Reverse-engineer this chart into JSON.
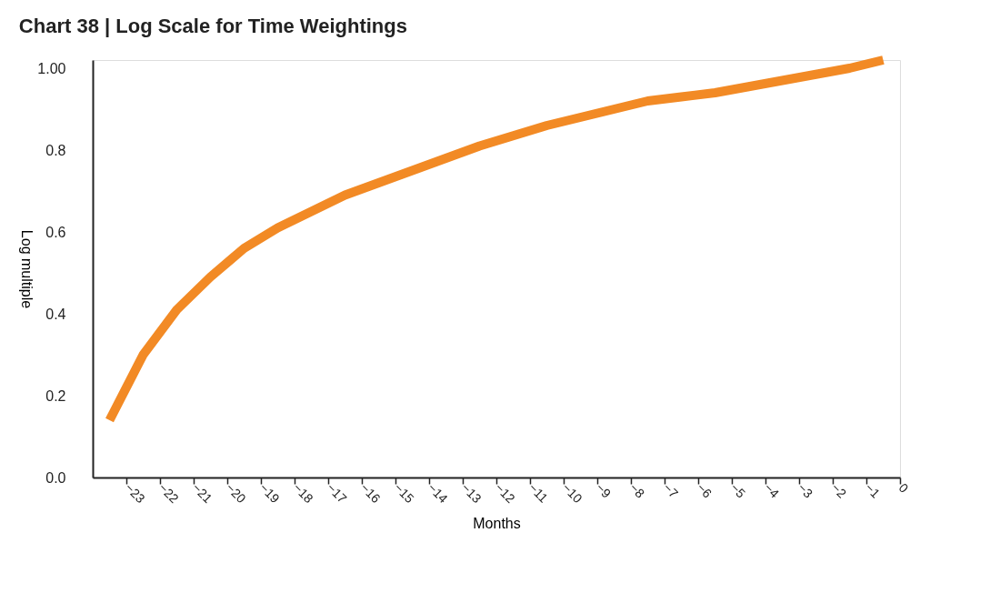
{
  "chart_data": {
    "type": "line",
    "title": "Chart 38 | Log Scale for Time Weightings",
    "xlabel": "Months",
    "ylabel": "Log multiple",
    "x": [
      -23.5,
      -22.5,
      -21.5,
      -20.5,
      -19.5,
      -18.5,
      -17.5,
      -16.5,
      -15.5,
      -14.5,
      -13.5,
      -12.5,
      -11.5,
      -10.5,
      -9.5,
      -8.5,
      -7.5,
      -6.5,
      -5.5,
      -4.5,
      -3.5,
      -2.5,
      -1.5,
      -0.5
    ],
    "series": [
      {
        "color": "#f28a25",
        "values": [
          0.14,
          0.3,
          0.41,
          0.49,
          0.56,
          0.61,
          0.65,
          0.69,
          0.72,
          0.75,
          0.78,
          0.81,
          0.835,
          0.86,
          0.88,
          0.9,
          0.92,
          0.93,
          0.94,
          0.955,
          0.97,
          0.985,
          1.0,
          1.02
        ]
      }
    ],
    "xlim": [
      -24,
      0
    ],
    "xticks": [
      -23,
      -22,
      -21,
      -20,
      -19,
      -18,
      -17,
      -16,
      -15,
      -14,
      -13,
      -12,
      -11,
      -10,
      -9,
      -8,
      -7,
      -6,
      -5,
      -4,
      -3,
      -2,
      -1,
      0
    ],
    "ylim": [
      0,
      1.02
    ],
    "yticks": [
      {
        "value": 0,
        "label": "0.0"
      },
      {
        "value": 0.2,
        "label": "0.2"
      },
      {
        "value": 0.4,
        "label": "0.4"
      },
      {
        "value": 0.6,
        "label": "0.6"
      },
      {
        "value": 0.8,
        "label": "0.8"
      },
      {
        "value": 1.0,
        "label": "1.00"
      }
    ],
    "grid": false,
    "marker": "none",
    "line_style": "solid"
  }
}
